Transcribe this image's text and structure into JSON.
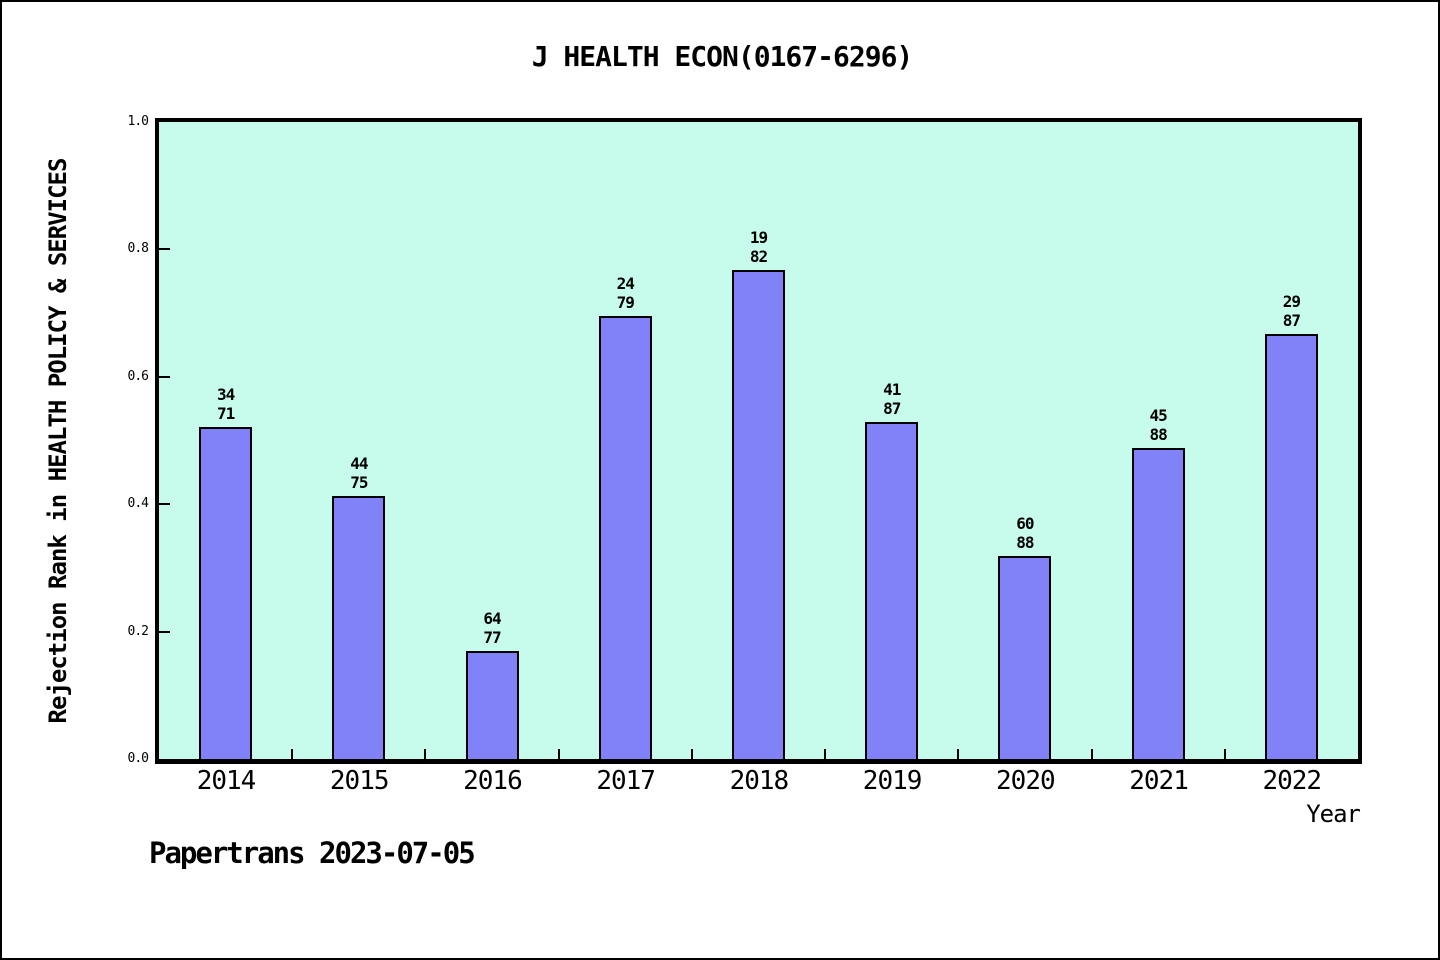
{
  "page": {
    "title": "J HEALTH ECON(0167-6296)",
    "footer": "Papertrans 2023-07-05"
  },
  "chart_data": {
    "type": "bar",
    "title": "J HEALTH ECON(0167-6296)",
    "xlabel": "Year",
    "ylabel": "Rejection Rank in HEALTH POLICY & SERVICES",
    "categories": [
      "2014",
      "2015",
      "2016",
      "2017",
      "2018",
      "2019",
      "2020",
      "2021",
      "2022"
    ],
    "values": [
      0.521,
      0.413,
      0.169,
      0.696,
      0.768,
      0.529,
      0.318,
      0.489,
      0.667
    ],
    "bar_labels": [
      {
        "rank": "34",
        "total": "71"
      },
      {
        "rank": "44",
        "total": "75"
      },
      {
        "rank": "64",
        "total": "77"
      },
      {
        "rank": "24",
        "total": "79"
      },
      {
        "rank": "19",
        "total": "82"
      },
      {
        "rank": "41",
        "total": "87"
      },
      {
        "rank": "60",
        "total": "88"
      },
      {
        "rank": "45",
        "total": "88"
      },
      {
        "rank": "29",
        "total": "87"
      }
    ],
    "ylim": [
      0.0,
      1.0
    ],
    "yticks": [
      "0.0",
      "0.2",
      "0.4",
      "0.6",
      "0.8",
      "1.0"
    ],
    "grid": false,
    "legend_position": "none",
    "bar_color": "#8181f8",
    "bar_border_color": "#000000",
    "plot_background_color": "#c7fbec",
    "annotation_note": "bar label shows rejection rank over journal count; bar height = 1 - rank/total"
  }
}
